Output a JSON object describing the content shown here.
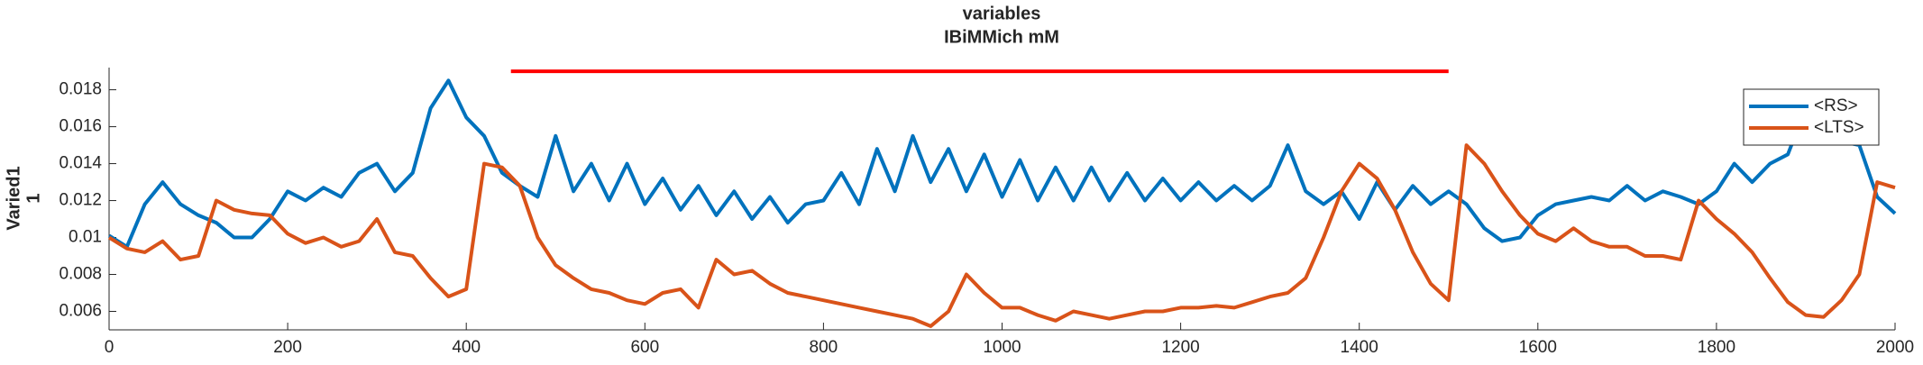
{
  "chart_data": {
    "type": "line",
    "title": "variables",
    "subtitle": "IBiMMich mM",
    "y_label": [
      "Varied1",
      "1"
    ],
    "x": [
      0,
      20,
      40,
      60,
      80,
      100,
      120,
      140,
      160,
      180,
      200,
      220,
      240,
      260,
      280,
      300,
      320,
      340,
      360,
      380,
      400,
      420,
      440,
      460,
      480,
      500,
      520,
      540,
      560,
      580,
      600,
      620,
      640,
      660,
      680,
      700,
      720,
      740,
      760,
      780,
      800,
      820,
      840,
      860,
      880,
      900,
      920,
      940,
      960,
      980,
      1000,
      1020,
      1040,
      1060,
      1080,
      1100,
      1120,
      1140,
      1160,
      1180,
      1200,
      1220,
      1240,
      1260,
      1280,
      1300,
      1320,
      1340,
      1360,
      1380,
      1400,
      1420,
      1440,
      1460,
      1480,
      1500,
      1520,
      1540,
      1560,
      1580,
      1600,
      1620,
      1640,
      1660,
      1680,
      1700,
      1720,
      1740,
      1760,
      1780,
      1800,
      1820,
      1840,
      1860,
      1880,
      1900,
      1920,
      1940,
      1960,
      1980,
      2000
    ],
    "series": [
      {
        "name": "<RS>",
        "color": "#0072bd",
        "values": [
          0.0101,
          0.0095,
          0.0118,
          0.013,
          0.0118,
          0.0112,
          0.0108,
          0.01,
          0.01,
          0.011,
          0.0125,
          0.012,
          0.0127,
          0.0122,
          0.0135,
          0.014,
          0.0125,
          0.0135,
          0.017,
          0.0185,
          0.0165,
          0.0155,
          0.0135,
          0.0128,
          0.0122,
          0.0155,
          0.0125,
          0.014,
          0.012,
          0.014,
          0.0118,
          0.0132,
          0.0115,
          0.0128,
          0.0112,
          0.0125,
          0.011,
          0.0122,
          0.0108,
          0.0118,
          0.012,
          0.0135,
          0.0118,
          0.0148,
          0.0125,
          0.0155,
          0.013,
          0.0148,
          0.0125,
          0.0145,
          0.0122,
          0.0142,
          0.012,
          0.0138,
          0.012,
          0.0138,
          0.012,
          0.0135,
          0.012,
          0.0132,
          0.012,
          0.013,
          0.012,
          0.0128,
          0.012,
          0.0128,
          0.015,
          0.0125,
          0.0118,
          0.0125,
          0.011,
          0.013,
          0.0115,
          0.0128,
          0.0118,
          0.0125,
          0.0118,
          0.0105,
          0.0098,
          0.01,
          0.0112,
          0.0118,
          0.012,
          0.0122,
          0.012,
          0.0128,
          0.012,
          0.0125,
          0.0122,
          0.0118,
          0.0125,
          0.014,
          0.013,
          0.014,
          0.0145,
          0.017,
          0.0165,
          0.0152,
          0.015,
          0.0122,
          0.0113
        ]
      },
      {
        "name": "<LTS>",
        "color": "#d95319",
        "values": [
          0.01,
          0.0094,
          0.0092,
          0.0098,
          0.0088,
          0.009,
          0.012,
          0.0115,
          0.0113,
          0.0112,
          0.0102,
          0.0097,
          0.01,
          0.0095,
          0.0098,
          0.011,
          0.0092,
          0.009,
          0.0078,
          0.0068,
          0.0072,
          0.014,
          0.0138,
          0.0128,
          0.01,
          0.0085,
          0.0078,
          0.0072,
          0.007,
          0.0066,
          0.0064,
          0.007,
          0.0072,
          0.0062,
          0.0088,
          0.008,
          0.0082,
          0.0075,
          0.007,
          0.0068,
          0.0066,
          0.0064,
          0.0062,
          0.006,
          0.0058,
          0.0056,
          0.0052,
          0.006,
          0.008,
          0.007,
          0.0062,
          0.0062,
          0.0058,
          0.0055,
          0.006,
          0.0058,
          0.0056,
          0.0058,
          0.006,
          0.006,
          0.0062,
          0.0062,
          0.0063,
          0.0062,
          0.0065,
          0.0068,
          0.007,
          0.0078,
          0.01,
          0.0125,
          0.014,
          0.0132,
          0.0115,
          0.0092,
          0.0075,
          0.0066,
          0.015,
          0.014,
          0.0125,
          0.0112,
          0.0102,
          0.0098,
          0.0105,
          0.0098,
          0.0095,
          0.0095,
          0.009,
          0.009,
          0.0088,
          0.012,
          0.011,
          0.0102,
          0.0092,
          0.0078,
          0.0065,
          0.0058,
          0.0057,
          0.0066,
          0.008,
          0.013,
          0.0127
        ]
      }
    ],
    "annotation": {
      "x": [
        450,
        1500
      ],
      "y": 0.019,
      "color": "#ff0000"
    },
    "xlim": [
      0,
      2000
    ],
    "xticks": [
      0,
      200,
      400,
      600,
      800,
      1000,
      1200,
      1400,
      1600,
      1800,
      2000
    ],
    "ylim": [
      0.005,
      0.0192
    ],
    "yticks": [
      0.006,
      0.008,
      0.01,
      0.012,
      0.014,
      0.016,
      0.018
    ],
    "legend": "upper right"
  }
}
